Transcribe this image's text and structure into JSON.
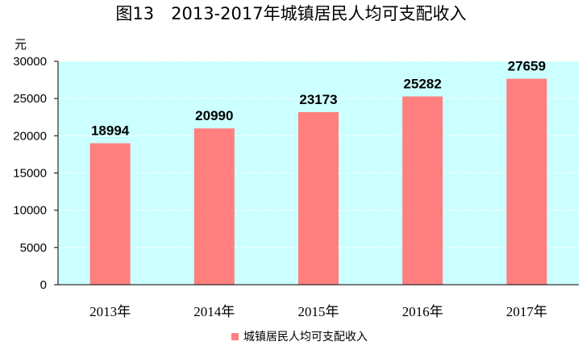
{
  "chart_data": {
    "type": "bar",
    "title": "图13　2013-2017年城镇居民人均可支配收入",
    "ylabel": "元",
    "xlabel": "",
    "categories": [
      "2013年",
      "2014年",
      "2015年",
      "2016年",
      "2017年"
    ],
    "series": [
      {
        "name": "城镇居民人均可支配收入",
        "values": [
          18994,
          20990,
          23173,
          25282,
          27659
        ]
      }
    ],
    "data_labels": [
      "18994",
      "20990",
      "23173",
      "25282",
      "27659"
    ],
    "ylim": [
      0,
      30000
    ],
    "yticks": [
      0,
      5000,
      10000,
      15000,
      20000,
      25000,
      30000
    ],
    "ytick_labels": [
      "0",
      "5000",
      "10000",
      "15000",
      "20000",
      "25000",
      "30000"
    ],
    "grid": true,
    "legend": "bottom",
    "colors": {
      "bar": "#ff7f7f",
      "plot_background": "#ccffff",
      "grid": "#ffffff"
    }
  }
}
